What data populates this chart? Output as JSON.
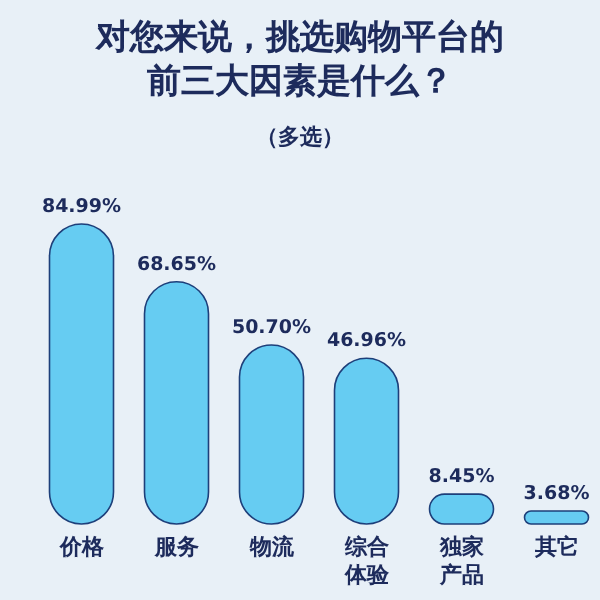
{
  "chart_data": {
    "type": "bar",
    "title": "对您来说，挑选购物平台的前三大因素是什么？",
    "subtitle": "（多选）",
    "categories": [
      "价格",
      "服务",
      "物流",
      "综合体验",
      "独家产品",
      "其它"
    ],
    "values": [
      84.99,
      68.65,
      50.7,
      46.96,
      8.45,
      3.68
    ],
    "value_labels": [
      "84.99%",
      "68.65%",
      "50.70%",
      "46.96%",
      "8.45%",
      "3.68%"
    ],
    "color": "#66ccf2"
  }
}
